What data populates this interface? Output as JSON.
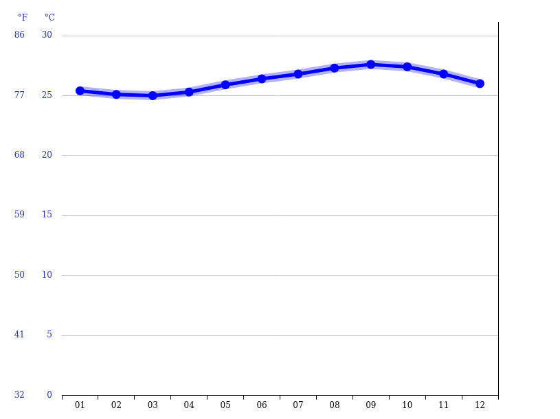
{
  "chart_data": {
    "type": "line",
    "categories": [
      "01",
      "02",
      "03",
      "04",
      "05",
      "06",
      "07",
      "08",
      "09",
      "10",
      "11",
      "12"
    ],
    "values": [
      25.4,
      25.1,
      25.0,
      25.3,
      25.9,
      26.4,
      26.8,
      27.3,
      27.6,
      27.4,
      26.8,
      26.0
    ],
    "color": "#0000ff",
    "ylabel": "°C",
    "y2label": "°F",
    "ylim": [
      0,
      30
    ],
    "yticks": [
      0,
      5,
      10,
      15,
      20,
      25,
      30
    ],
    "y2lim": [
      32,
      86
    ],
    "y2ticks": [
      32,
      41,
      50,
      59,
      68,
      77,
      86
    ],
    "grid": true,
    "marker": "circle"
  }
}
